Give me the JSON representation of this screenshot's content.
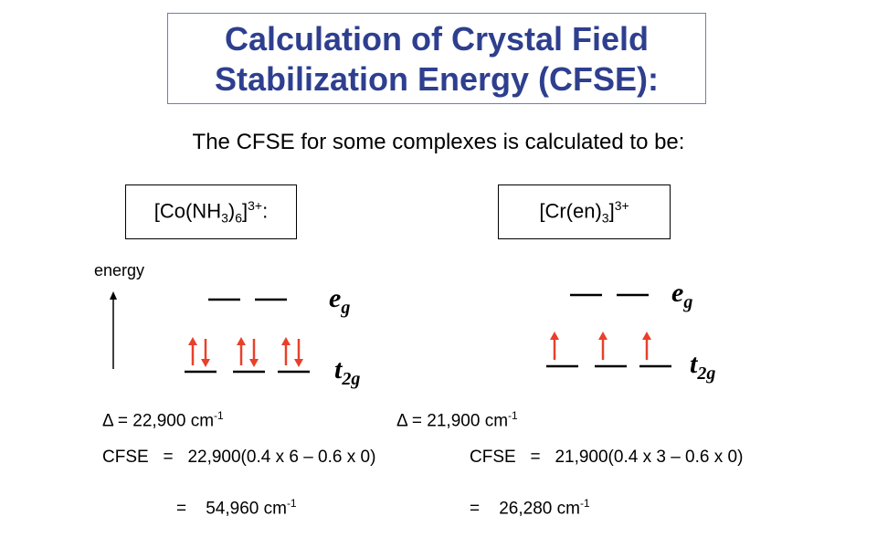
{
  "title": {
    "line1": "Calculation of Crystal Field",
    "line2": "Stabilization Energy (CFSE):"
  },
  "subtitle": "The CFSE for some complexes is calculated to be:",
  "energy_axis_label": "energy",
  "left": {
    "complex": {
      "prefix": "[Co(NH",
      "sub1": "3",
      "mid": ")",
      "sub2": "6",
      "close": "]",
      "charge": "3+",
      "suffix": ":"
    },
    "eg_label": {
      "main": "e",
      "sub": "g"
    },
    "t2g_label": {
      "main": "t",
      "sub": "2g"
    },
    "t2g_electrons": "paired (6 electrons)",
    "delta": {
      "text": "Δ = 22,900 cm",
      "exp": "-1"
    },
    "cfse_line": "CFSE   =   22,900(0.4 x 6 – 0.6 x 0)",
    "result": {
      "text": "=    54,960 cm",
      "exp": "-1"
    }
  },
  "right": {
    "complex": {
      "prefix": "[Cr(en)",
      "sub1": "3",
      "close": "]",
      "charge": "3+"
    },
    "eg_label": {
      "main": "e",
      "sub": "g"
    },
    "t2g_label": {
      "main": "t",
      "sub": "2g"
    },
    "t2g_electrons": "unpaired (3 electrons)",
    "delta": {
      "text": "Δ = 21,900 cm",
      "exp": "-1"
    },
    "cfse_line": "CFSE   =   21,900(0.4 x 3 – 0.6 x 0)",
    "result": {
      "text": "=    26,280 cm",
      "exp": "-1"
    }
  },
  "colors": {
    "title": "#2e3f8f",
    "title_border": "#6b7fb5",
    "electron_arrow": "#e8402a",
    "levels": "#000000"
  }
}
